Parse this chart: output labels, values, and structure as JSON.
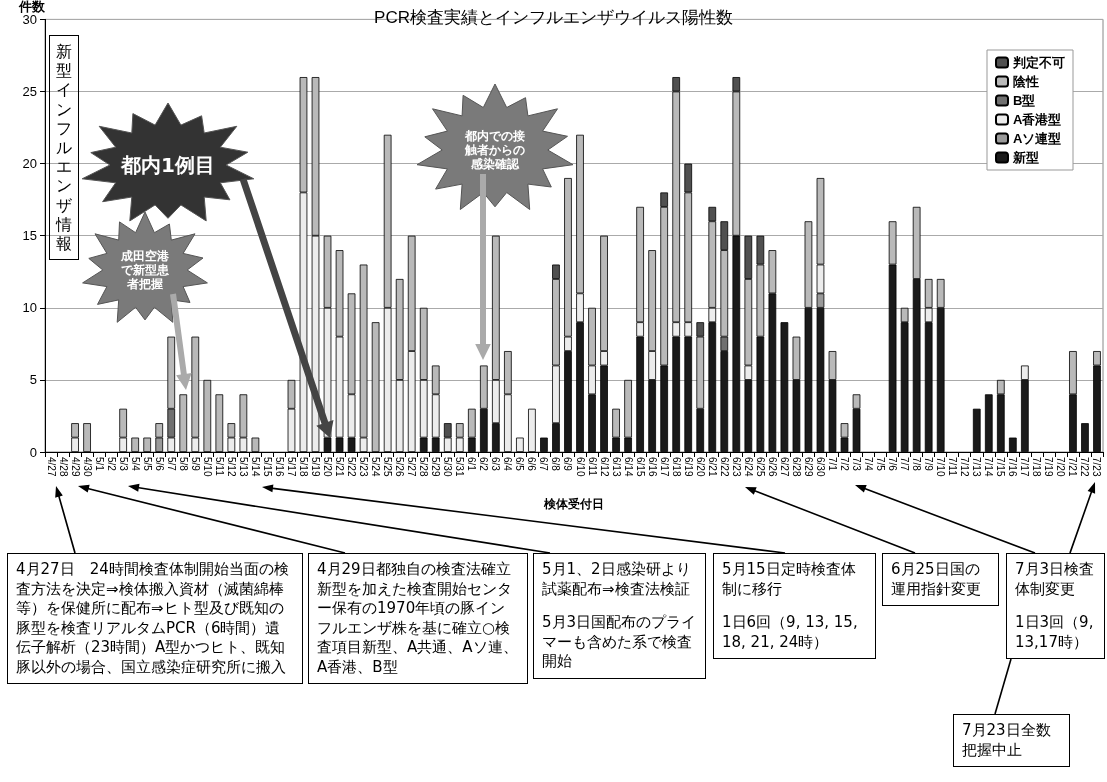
{
  "chart_data": {
    "type": "bar",
    "title": "PCR検査実績とインフルエンザウイルス陽性数",
    "ylabel": "件数",
    "xlabel": "検体受付日",
    "categories": [
      "4/27",
      "4/28",
      "4/29",
      "4/30",
      "5/1",
      "5/2",
      "5/3",
      "5/4",
      "5/5",
      "5/6",
      "5/7",
      "5/8",
      "5/9",
      "5/10",
      "5/11",
      "5/12",
      "5/13",
      "5/14",
      "5/15",
      "5/16",
      "5/17",
      "5/18",
      "5/19",
      "5/20",
      "5/21",
      "5/22",
      "5/23",
      "5/24",
      "5/25",
      "5/26",
      "5/27",
      "5/28",
      "5/29",
      "5/30",
      "5/31",
      "6/1",
      "6/2",
      "6/3",
      "6/4",
      "6/5",
      "6/6",
      "6/7",
      "6/8",
      "6/9",
      "6/10",
      "6/11",
      "6/12",
      "6/13",
      "6/14",
      "6/15",
      "6/16",
      "6/17",
      "6/18",
      "6/19",
      "6/20",
      "6/21",
      "6/22",
      "6/23",
      "6/24",
      "6/25",
      "6/26",
      "6/27",
      "6/28",
      "6/29",
      "6/30",
      "7/1",
      "7/2",
      "7/3",
      "7/4",
      "7/5",
      "7/6",
      "7/7",
      "7/8",
      "7/9",
      "7/10",
      "7/11",
      "7/12",
      "7/13",
      "7/14",
      "7/15",
      "7/16",
      "7/17",
      "7/18",
      "7/19",
      "7/20",
      "7/21",
      "7/22",
      "7/23"
    ],
    "stacked": true,
    "ylim": [
      0,
      30
    ],
    "yticks": [
      0,
      5,
      10,
      15,
      20,
      25,
      30
    ],
    "grid": "y",
    "legend": "top right",
    "series": [
      {
        "name": "新型",
        "color": "#1a1a1a",
        "values": [
          null,
          null,
          null,
          null,
          null,
          null,
          null,
          null,
          null,
          null,
          null,
          null,
          null,
          null,
          null,
          null,
          null,
          null,
          null,
          null,
          null,
          null,
          null,
          1,
          1,
          1,
          null,
          null,
          null,
          null,
          null,
          1,
          1,
          null,
          null,
          1,
          3,
          2,
          null,
          null,
          null,
          1,
          2,
          7,
          9,
          4,
          6,
          1,
          1,
          8,
          5,
          6,
          8,
          8,
          3,
          9,
          7,
          15,
          5,
          8,
          11,
          9,
          5,
          10,
          10,
          5,
          1,
          3,
          null,
          null,
          13,
          9,
          12,
          9,
          10,
          null,
          null,
          3,
          4,
          4,
          1,
          5,
          null,
          null,
          null,
          4,
          2,
          6
        ]
      },
      {
        "name": "Aソ連型",
        "color": "#9a9a9a",
        "values": [
          null,
          null,
          null,
          null,
          null,
          null,
          null,
          null,
          null,
          1,
          null,
          null,
          null,
          null,
          null,
          null,
          null,
          null,
          null,
          null,
          null,
          null,
          null,
          null,
          null,
          null,
          null,
          null,
          null,
          null,
          null,
          null,
          null,
          null,
          null,
          null,
          null,
          null,
          null,
          null,
          null,
          null,
          null,
          null,
          null,
          null,
          null,
          null,
          null,
          null,
          null,
          null,
          null,
          null,
          null,
          null,
          null,
          null,
          null,
          null,
          null,
          null,
          null,
          null,
          1,
          null,
          null,
          null,
          null,
          null,
          null,
          null,
          null,
          null,
          null,
          null,
          null,
          null,
          null,
          null,
          null,
          null,
          null,
          null,
          null,
          null,
          null,
          null
        ]
      },
      {
        "name": "A香港型",
        "color": "#ececec",
        "values": [
          null,
          null,
          1,
          null,
          null,
          null,
          1,
          null,
          null,
          null,
          1,
          null,
          1,
          null,
          null,
          1,
          1,
          null,
          null,
          null,
          3,
          18,
          15,
          9,
          7,
          3,
          1,
          null,
          10,
          5,
          7,
          4,
          3,
          1,
          1,
          null,
          null,
          3,
          4,
          1,
          3,
          null,
          4,
          1,
          2,
          2,
          1,
          null,
          null,
          1,
          2,
          null,
          1,
          1,
          null,
          1,
          null,
          null,
          1,
          null,
          null,
          null,
          null,
          null,
          2,
          null,
          null,
          null,
          null,
          null,
          null,
          null,
          null,
          1,
          null,
          null,
          null,
          null,
          null,
          null,
          null,
          1,
          null,
          null,
          null,
          null,
          null,
          null
        ]
      },
      {
        "name": "B型",
        "color": "#707070",
        "values": [
          null,
          null,
          null,
          null,
          null,
          null,
          null,
          null,
          null,
          null,
          2,
          null,
          null,
          null,
          null,
          null,
          null,
          null,
          null,
          null,
          null,
          null,
          null,
          null,
          null,
          null,
          null,
          null,
          null,
          null,
          null,
          null,
          null,
          null,
          null,
          null,
          null,
          null,
          null,
          null,
          null,
          null,
          null,
          null,
          null,
          null,
          null,
          null,
          null,
          null,
          null,
          null,
          null,
          null,
          null,
          null,
          1,
          null,
          null,
          null,
          null,
          null,
          null,
          null,
          null,
          null,
          null,
          null,
          null,
          null,
          null,
          null,
          null,
          null,
          null,
          null,
          null,
          null,
          null,
          null,
          null,
          null,
          null,
          null,
          null,
          null,
          null,
          null
        ]
      },
      {
        "name": "陰性",
        "color": "#b9b9b9",
        "values": [
          null,
          null,
          1,
          2,
          null,
          null,
          2,
          1,
          1,
          1,
          5,
          4,
          7,
          5,
          4,
          1,
          3,
          1,
          null,
          null,
          2,
          8,
          11,
          5,
          6,
          7,
          12,
          9,
          12,
          7,
          8,
          5,
          2,
          null,
          1,
          2,
          3,
          10,
          3,
          null,
          null,
          null,
          6,
          11,
          11,
          4,
          8,
          2,
          4,
          8,
          7,
          11,
          16,
          9,
          5,
          6,
          6,
          10,
          6,
          5,
          3,
          null,
          3,
          6,
          6,
          2,
          1,
          1,
          null,
          null,
          3,
          1,
          5,
          2,
          2,
          null,
          null,
          null,
          null,
          1,
          null,
          null,
          null,
          null,
          null,
          3,
          null,
          1
        ]
      },
      {
        "name": "判定不可",
        "color": "#505050",
        "values": [
          null,
          null,
          null,
          null,
          null,
          null,
          null,
          null,
          null,
          null,
          null,
          null,
          null,
          null,
          null,
          null,
          null,
          null,
          null,
          null,
          null,
          null,
          null,
          null,
          null,
          null,
          null,
          null,
          null,
          null,
          null,
          null,
          null,
          1,
          null,
          null,
          null,
          null,
          null,
          null,
          null,
          null,
          1,
          null,
          null,
          null,
          null,
          null,
          null,
          null,
          null,
          1,
          1,
          2,
          1,
          1,
          2,
          1,
          3,
          2,
          null,
          null,
          null,
          null,
          null,
          null,
          null,
          null,
          null,
          null,
          null,
          null,
          null,
          null,
          null,
          null,
          null,
          null,
          null,
          null,
          null,
          null,
          null,
          null,
          null,
          null,
          null,
          null
        ]
      }
    ],
    "annotations": [
      "新型インフルエンザ情報",
      "都内1例目",
      "成田空港で新型患者把握",
      "都内での接触者からの感染確認",
      "4月27日　24時間検査体制開始当面の検査方法を決定⇒検体搬入資材（滅菌綿棒等）を保健所に配布⇒ヒト型及び既知の豚型を検査リアルタムPCR（6時間）遺伝子解析（23時間）A型かつヒト、既知豚以外の場合、国立感染症研究所に搬入",
      "4月29日都独自の検査法確立新型を加えた検査開始センター保有の1970年頃の豚インフルエンザ株を基に確立○検査項目新型、A共通、Aソ連、A香港、B型",
      "5月1、2日感染研より試薬配布⇒検査法検証",
      "5月3日国配布のプライマーも含めた系で検査開始",
      "5月15日定時検査体制に移行",
      "1日6回（9, 13, 15, 18, 21, 24時）",
      "6月25日国の運用指針変更",
      "7月3日検査体制変更",
      "1日3回（9,13,17時）",
      "7月23日全数把握中止"
    ]
  }
}
